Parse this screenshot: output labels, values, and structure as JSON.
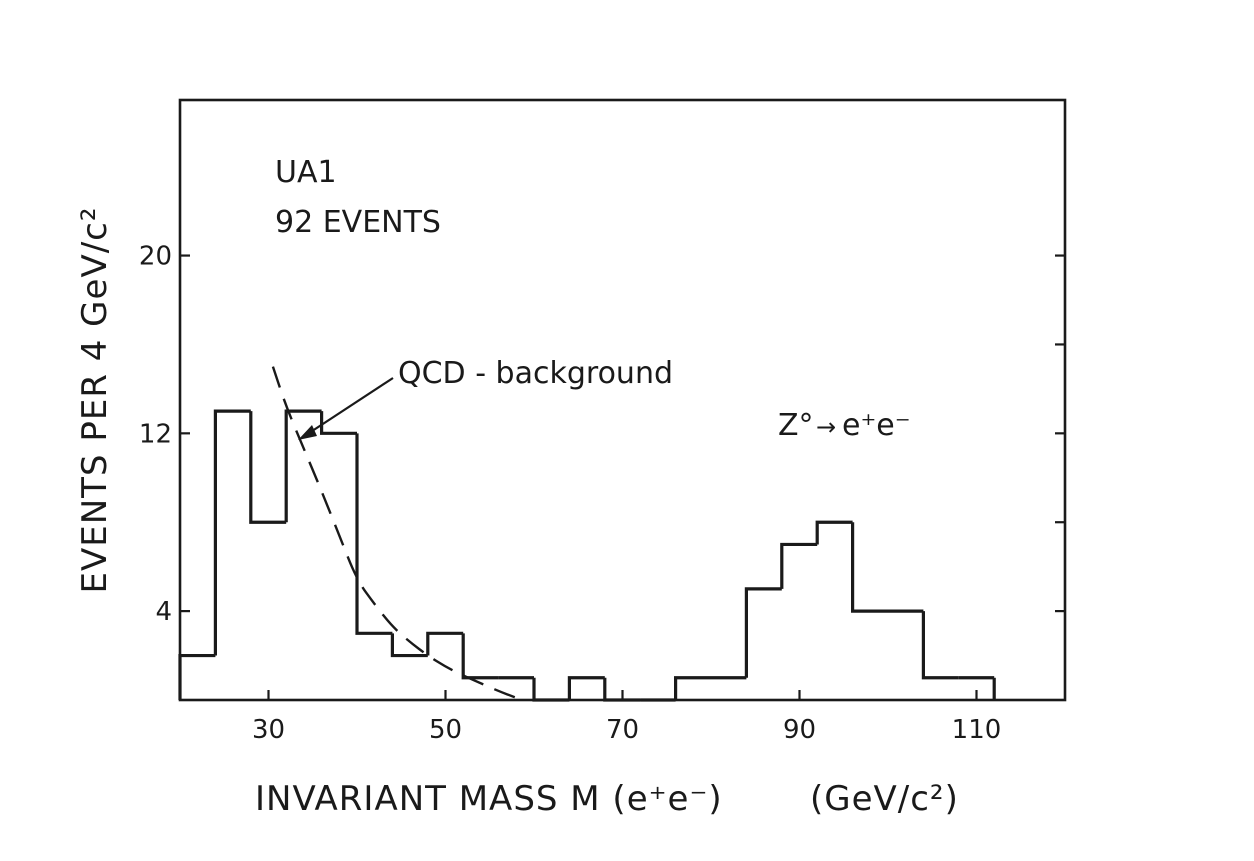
{
  "chart_data": {
    "type": "bar",
    "title": "",
    "xlabel": "INVARIANT MASS  M (e⁺e⁻)",
    "xlabel_unit": "(GeV/c²)",
    "ylabel": "EVENTS PER 4 GeV/c²",
    "xlim": [
      20,
      120
    ],
    "ylim": [
      0,
      27
    ],
    "x_ticks": [
      30,
      50,
      70,
      90,
      110
    ],
    "y_ticks": [
      4,
      12,
      20
    ],
    "y_minor_ticks": [
      8,
      16
    ],
    "bin_width": 4,
    "bins": [
      {
        "x0": 20,
        "x1": 24,
        "value": 2
      },
      {
        "x0": 24,
        "x1": 28,
        "value": 13
      },
      {
        "x0": 28,
        "x1": 32,
        "value": 8
      },
      {
        "x0": 32,
        "x1": 36,
        "value": 13
      },
      {
        "x0": 36,
        "x1": 40,
        "value": 12
      },
      {
        "x0": 40,
        "x1": 44,
        "value": 3
      },
      {
        "x0": 44,
        "x1": 48,
        "value": 2
      },
      {
        "x0": 48,
        "x1": 52,
        "value": 3
      },
      {
        "x0": 52,
        "x1": 56,
        "value": 1
      },
      {
        "x0": 56,
        "x1": 60,
        "value": 1
      },
      {
        "x0": 60,
        "x1": 64,
        "value": 0
      },
      {
        "x0": 64,
        "x1": 68,
        "value": 1
      },
      {
        "x0": 68,
        "x1": 72,
        "value": 0
      },
      {
        "x0": 72,
        "x1": 76,
        "value": 0
      },
      {
        "x0": 76,
        "x1": 80,
        "value": 1
      },
      {
        "x0": 80,
        "x1": 84,
        "value": 1
      },
      {
        "x0": 84,
        "x1": 88,
        "value": 5
      },
      {
        "x0": 88,
        "x1": 92,
        "value": 7
      },
      {
        "x0": 92,
        "x1": 96,
        "value": 8
      },
      {
        "x0": 96,
        "x1": 100,
        "value": 4
      },
      {
        "x0": 100,
        "x1": 104,
        "value": 4
      },
      {
        "x0": 104,
        "x1": 108,
        "value": 1
      },
      {
        "x0": 108,
        "x1": 112,
        "value": 1
      }
    ],
    "background_curve": {
      "style": "dashed",
      "x": [
        30.5,
        32,
        34,
        36,
        38,
        40,
        42,
        44,
        46,
        48,
        50,
        52,
        54,
        56,
        58
      ],
      "y": [
        15,
        13.2,
        11.3,
        9.4,
        7.4,
        5.4,
        4.3,
        3.3,
        2.6,
        2.0,
        1.5,
        1.1,
        0.75,
        0.4,
        0.1
      ]
    },
    "annotations": {
      "experiment": "UA1",
      "events": "92 EVENTS",
      "qcd": "QCD - background",
      "z_prefix": "Z°",
      "z_arrow": "→",
      "z_decay": "e⁺e⁻"
    },
    "grid": false,
    "legend": "none"
  }
}
